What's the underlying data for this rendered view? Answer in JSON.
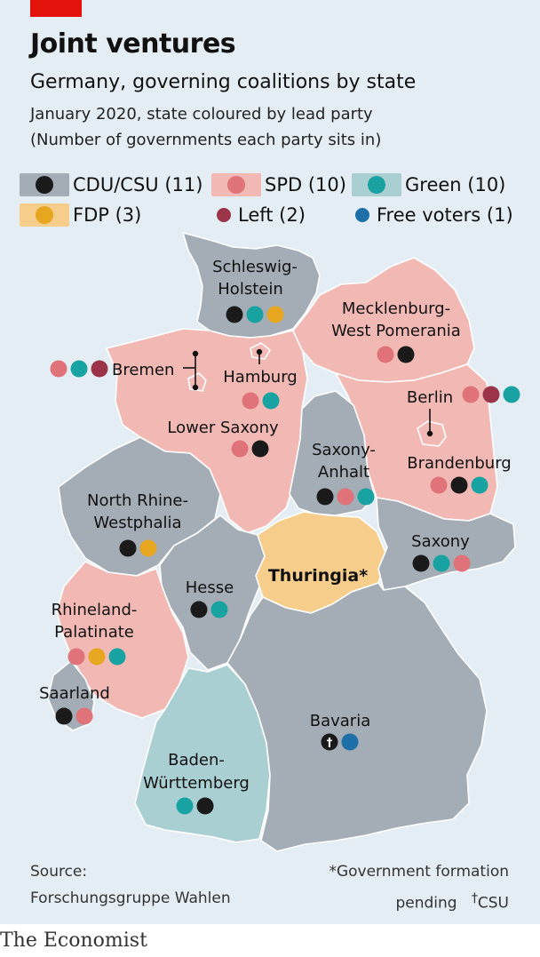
{
  "header": {
    "title": "Joint ventures",
    "subtitle": "Germany, governing coalitions by state",
    "description_line1": "January 2020, state coloured by lead party",
    "description_line2": "(Number of governments each party sits in)"
  },
  "legend": [
    {
      "label": "CDU/CSU (11)",
      "fill": "#a4acb5",
      "dot": "#1a1a1a",
      "swatch": true
    },
    {
      "label": "SPD (10)",
      "fill": "#f2b8b3",
      "dot": "#e0727a",
      "swatch": true
    },
    {
      "label": "Green (10)",
      "fill": "#a9cfd2",
      "dot": "#19a2a2",
      "swatch": true
    },
    {
      "label": "FDP (3)",
      "fill": "#f7cd8b",
      "dot": "#e6a620",
      "swatch": true
    },
    {
      "label": "Left (2)",
      "fill": "",
      "dot": "#9b3349",
      "swatch": false
    },
    {
      "label": "Free voters (1)",
      "fill": "",
      "dot": "#1c6fa7",
      "swatch": false
    }
  ],
  "colors": {
    "cdu": "#1a1a1a",
    "spd": "#e0727a",
    "green": "#19a2a2",
    "fdp": "#e6a620",
    "left": "#9b3349",
    "fw": "#1c6fa7",
    "fill_cdu": "#a4acb5",
    "fill_spd": "#f2b8b3",
    "fill_green": "#a9cfd2",
    "fill_fdp": "#f7cd8b"
  },
  "states": [
    {
      "id": "schleswig-holstein",
      "label_lines": [
        "Schleswig-",
        "Holstein"
      ],
      "lead": "cdu",
      "parties": [
        "cdu",
        "green",
        "fdp"
      ]
    },
    {
      "id": "mecklenburg-west-pomerania",
      "label_lines": [
        "Mecklenburg-",
        "West Pomerania"
      ],
      "lead": "spd",
      "parties": [
        "spd",
        "cdu"
      ]
    },
    {
      "id": "bremen",
      "label_lines": [
        "Bremen"
      ],
      "lead": "spd",
      "parties": [
        "spd",
        "green",
        "left"
      ]
    },
    {
      "id": "hamburg",
      "label_lines": [
        "Hamburg"
      ],
      "lead": "spd",
      "parties": [
        "spd",
        "green"
      ]
    },
    {
      "id": "berlin",
      "label_lines": [
        "Berlin"
      ],
      "lead": "spd",
      "parties": [
        "spd",
        "left",
        "green"
      ]
    },
    {
      "id": "lower-saxony",
      "label_lines": [
        "Lower Saxony"
      ],
      "lead": "spd",
      "parties": [
        "spd",
        "cdu"
      ]
    },
    {
      "id": "saxony-anhalt",
      "label_lines": [
        "Saxony-",
        "Anhalt"
      ],
      "lead": "cdu",
      "parties": [
        "cdu",
        "spd",
        "green"
      ]
    },
    {
      "id": "brandenburg",
      "label_lines": [
        "Brandenburg"
      ],
      "lead": "spd",
      "parties": [
        "spd",
        "cdu",
        "green"
      ]
    },
    {
      "id": "north-rhine-westphalia",
      "label_lines": [
        "North Rhine-",
        "Westphalia"
      ],
      "lead": "cdu",
      "parties": [
        "cdu",
        "fdp"
      ]
    },
    {
      "id": "saxony",
      "label_lines": [
        "Saxony"
      ],
      "lead": "cdu",
      "parties": [
        "cdu",
        "green",
        "spd"
      ]
    },
    {
      "id": "thuringia",
      "label_lines": [
        "Thuringia*"
      ],
      "lead": "fdp",
      "parties": []
    },
    {
      "id": "hesse",
      "label_lines": [
        "Hesse"
      ],
      "lead": "cdu",
      "parties": [
        "cdu",
        "green"
      ]
    },
    {
      "id": "rhineland-palatinate",
      "label_lines": [
        "Rhineland-",
        "Palatinate"
      ],
      "lead": "spd",
      "parties": [
        "spd",
        "fdp",
        "green"
      ]
    },
    {
      "id": "saarland",
      "label_lines": [
        "Saarland"
      ],
      "lead": "cdu",
      "parties": [
        "cdu",
        "spd"
      ]
    },
    {
      "id": "bavaria",
      "label_lines": [
        "Bavaria"
      ],
      "lead": "cdu",
      "parties": [
        "csu",
        "fw"
      ],
      "csu_mark": "†"
    },
    {
      "id": "baden-wurttemberg",
      "label_lines": [
        "Baden-",
        "Württemberg"
      ],
      "lead": "green",
      "parties": [
        "green",
        "cdu"
      ]
    }
  ],
  "footer": {
    "source_line1": "Source:",
    "source_line2": "Forschungsgruppe Wahlen",
    "note_line1": "*Government formation",
    "note_line2": "pending",
    "note_mark": "†",
    "note_line3": "CSU",
    "brand": "The Economist"
  }
}
